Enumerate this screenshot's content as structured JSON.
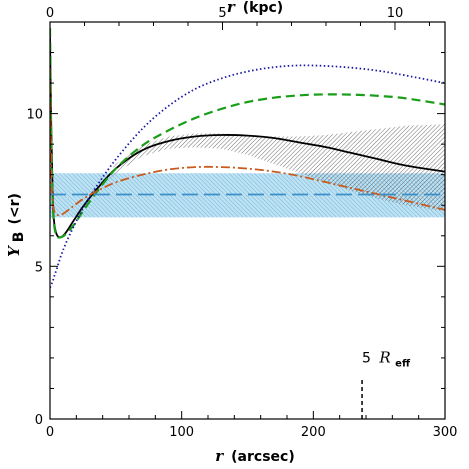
{
  "chart_data": {
    "type": "line",
    "title": "",
    "xlabel_var": "r",
    "xlabel_unit": "(arcsec)",
    "top_xlabel_var": "r",
    "top_xlabel_unit": "(kpc)",
    "ylabel_symbol": "Υ",
    "ylabel_sub": "B",
    "ylabel_rest": "(<r)",
    "xlim": [
      0,
      300
    ],
    "ylim": [
      0,
      13
    ],
    "x_ticks": [
      {
        "value": 0,
        "label": "0"
      },
      {
        "value": 100,
        "label": "100"
      },
      {
        "value": 200,
        "label": "200"
      },
      {
        "value": 300,
        "label": "300"
      }
    ],
    "y_ticks": [
      {
        "value": 0,
        "label": "0"
      },
      {
        "value": 5,
        "label": "5"
      },
      {
        "value": 10,
        "label": "10"
      }
    ],
    "top_ticks_kpc": [
      {
        "value": 0,
        "label": "0"
      },
      {
        "value": 5,
        "label": "5"
      },
      {
        "value": 10,
        "label": "10"
      }
    ],
    "arcsec_per_kpc": 26.2,
    "reff_marker": {
      "x": 237,
      "label_num": "5",
      "label_var": "R",
      "label_sub": "eff"
    },
    "colors": {
      "black": "#000000",
      "green": "#1a9e1a",
      "blue": "#1a1aa6",
      "orange": "#c85a1e",
      "cyan": "#3a8fc8",
      "cyan_band": "#9ccfe8",
      "gray_band": "#9a9a9a"
    },
    "series": [
      {
        "color": "black",
        "style": "solid",
        "x": [
          0,
          1,
          2,
          3,
          5,
          8,
          12,
          18,
          25,
          35,
          50,
          70,
          90,
          110,
          130,
          150,
          170,
          190,
          210,
          230,
          250,
          270,
          300
        ],
        "y": [
          12.5,
          9.5,
          7.5,
          6.5,
          6.05,
          5.95,
          6.1,
          6.5,
          6.95,
          7.5,
          8.2,
          8.8,
          9.1,
          9.25,
          9.3,
          9.28,
          9.2,
          9.05,
          8.9,
          8.7,
          8.5,
          8.3,
          8.1
        ]
      },
      {
        "color": "green",
        "style": "dashed",
        "x": [
          0,
          1,
          2,
          3,
          5,
          8,
          12,
          18,
          25,
          35,
          50,
          70,
          90,
          110,
          130,
          150,
          170,
          190,
          210,
          230,
          250,
          270,
          300
        ],
        "y": [
          12.8,
          9.0,
          7.2,
          6.4,
          6.0,
          5.95,
          6.05,
          6.35,
          6.8,
          7.4,
          8.2,
          8.95,
          9.45,
          9.85,
          10.15,
          10.38,
          10.52,
          10.6,
          10.63,
          10.62,
          10.58,
          10.5,
          10.3
        ]
      },
      {
        "color": "blue",
        "style": "dotted",
        "x": [
          0,
          1,
          2,
          3,
          5,
          8,
          12,
          18,
          25,
          35,
          50,
          70,
          90,
          110,
          130,
          150,
          170,
          190,
          210,
          230,
          250,
          270,
          300
        ],
        "y": [
          4.3,
          4.4,
          4.5,
          4.65,
          4.9,
          5.3,
          5.75,
          6.3,
          6.9,
          7.6,
          8.5,
          9.5,
          10.25,
          10.8,
          11.15,
          11.38,
          11.52,
          11.58,
          11.56,
          11.5,
          11.4,
          11.25,
          11.0
        ]
      },
      {
        "color": "orange",
        "style": "dash-dot",
        "x": [
          0,
          1,
          2,
          3,
          5,
          8,
          12,
          18,
          25,
          35,
          50,
          70,
          90,
          110,
          130,
          150,
          170,
          190,
          210,
          230,
          250,
          270,
          300
        ],
        "y": [
          11.5,
          8.0,
          7.2,
          6.85,
          6.7,
          6.68,
          6.78,
          6.98,
          7.2,
          7.45,
          7.75,
          8.0,
          8.17,
          8.25,
          8.25,
          8.2,
          8.1,
          7.95,
          7.75,
          7.55,
          7.35,
          7.15,
          6.85
        ]
      },
      {
        "color": "cyan",
        "style": "long-dash",
        "x": [
          0,
          300
        ],
        "y": [
          7.35,
          7.35
        ]
      }
    ],
    "bands": [
      {
        "color": "cyan_band",
        "x": [
          0,
          300
        ],
        "lower": [
          6.6,
          6.6
        ],
        "upper": [
          8.05,
          8.05
        ]
      },
      {
        "color": "gray_band",
        "x": [
          35,
          50,
          70,
          90,
          110,
          130,
          150,
          170,
          190,
          210,
          230,
          250,
          270,
          300
        ],
        "lower": [
          7.45,
          8.05,
          8.6,
          8.85,
          8.9,
          8.85,
          8.65,
          8.35,
          8.05,
          7.75,
          7.45,
          7.2,
          7.0,
          6.8
        ],
        "upper": [
          7.55,
          8.35,
          8.95,
          9.25,
          9.35,
          9.35,
          9.3,
          9.25,
          9.25,
          9.3,
          9.4,
          9.5,
          9.6,
          9.65
        ]
      }
    ]
  }
}
